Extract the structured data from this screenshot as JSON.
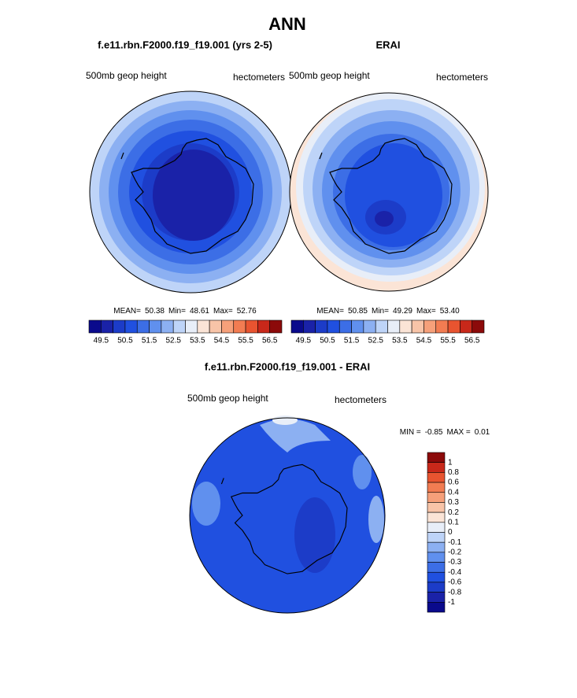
{
  "title": "ANN",
  "panels": [
    {
      "title": "f.e11.rbn.F2000.f19_f19.001 (yrs 2-5)",
      "left_label": "500mb geop height",
      "right_label": "hectometers",
      "stats": [
        {
          "label": "MEAN=",
          "value": "50.38"
        },
        {
          "label": "Min=",
          "value": "48.61"
        },
        {
          "label": "Max=",
          "value": "52.76"
        }
      ]
    },
    {
      "title": "ERAI",
      "left_label": "500mb geop height",
      "right_label": "hectometers",
      "stats": [
        {
          "label": "MEAN=",
          "value": "50.85"
        },
        {
          "label": "Min=",
          "value": "49.29"
        },
        {
          "label": "Max=",
          "value": "53.40"
        }
      ]
    },
    {
      "title": "f.e11.rbn.F2000.f19_f19.001 - ERAI",
      "left_label": "500mb geop height",
      "right_label": "hectometers",
      "stats": [
        {
          "label": "MIN =",
          "value": "-0.85"
        },
        {
          "label": "MAX =",
          "value": "0.01"
        }
      ]
    }
  ],
  "colorbar_colors": [
    "#0a0a8c",
    "#1a22a8",
    "#1c3cc8",
    "#2050e0",
    "#3c6ee6",
    "#6090ee",
    "#8cb0f2",
    "#bed4f8",
    "#e8eef8",
    "#fbe4d6",
    "#f8c4a8",
    "#f6a07a",
    "#f27c52",
    "#e85430",
    "#c8281a",
    "#8c0a0a"
  ],
  "top_colorbar_labels": [
    "49.5",
    "50.5",
    "51.5",
    "52.5",
    "53.5",
    "54.5",
    "55.5",
    "56.5"
  ],
  "diff_colorbar_labels": [
    "1",
    "0.8",
    "0.6",
    "0.4",
    "0.3",
    "0.2",
    "0.1",
    "0",
    "-0.1",
    "-0.2",
    "-0.3",
    "-0.4",
    "-0.6",
    "-0.8",
    "-1"
  ]
}
